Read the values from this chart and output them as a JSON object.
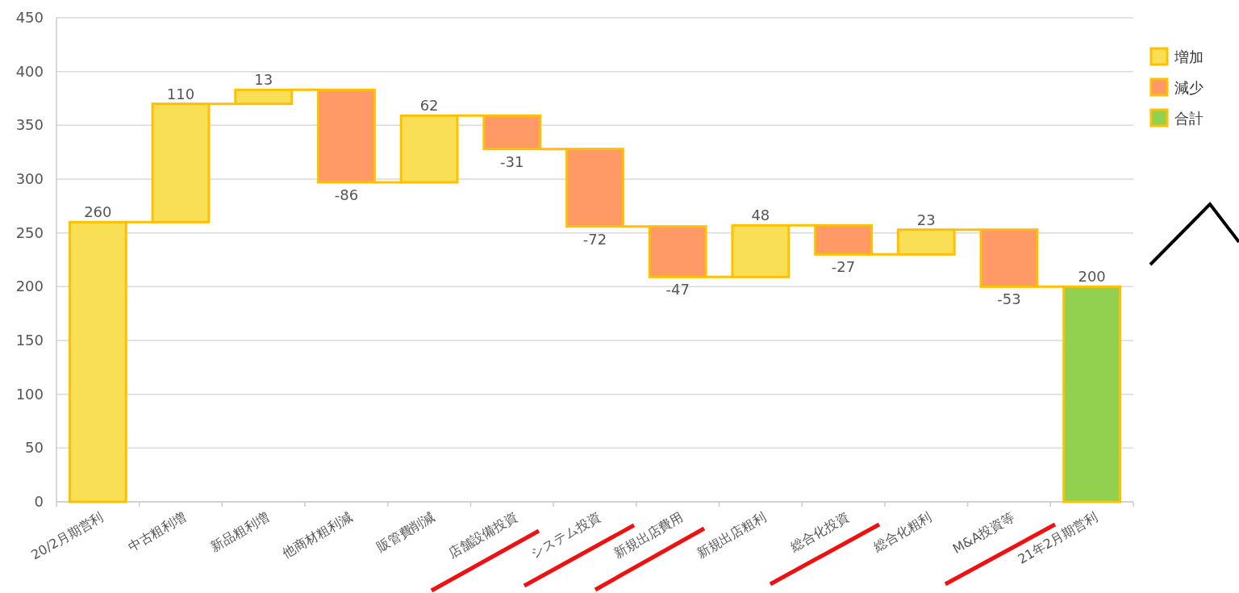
{
  "chart_data": {
    "type": "bar",
    "categories": [
      "20/2月期営利",
      "中古粗利増",
      "新品粗利増",
      "他商材粗利減",
      "販管費削減",
      "店舗設備投資",
      "システム投資",
      "新規出店費用",
      "新規出店粗利",
      "総合化投資",
      "総合化粗利",
      "M&A投資等",
      "21年2月期営利"
    ],
    "series": [
      {
        "name": "増加",
        "color": "#f9df55",
        "values": [
          260,
          110,
          13,
          null,
          62,
          null,
          null,
          null,
          48,
          null,
          23,
          null,
          null
        ],
        "base": [
          0,
          260,
          370,
          null,
          297,
          null,
          null,
          null,
          209,
          null,
          230,
          null,
          null
        ]
      },
      {
        "name": "減少",
        "color": "#ff9966",
        "values": [
          null,
          null,
          null,
          -86,
          null,
          -31,
          -72,
          -47,
          null,
          -27,
          null,
          -53,
          null
        ],
        "base": [
          null,
          null,
          null,
          383,
          null,
          359,
          328,
          256,
          null,
          257,
          null,
          253,
          null
        ]
      },
      {
        "name": "合計",
        "color": "#92d050",
        "values": [
          null,
          null,
          null,
          null,
          null,
          null,
          null,
          null,
          null,
          null,
          null,
          null,
          200
        ],
        "base": [
          null,
          null,
          null,
          null,
          null,
          null,
          null,
          null,
          null,
          null,
          null,
          null,
          0
        ]
      }
    ],
    "ylim": [
      0,
      450
    ],
    "yticks": [
      0,
      50,
      100,
      150,
      200,
      250,
      300,
      350,
      400,
      450
    ],
    "grid": "y",
    "legend": "top right",
    "data_labels": true
  }
}
